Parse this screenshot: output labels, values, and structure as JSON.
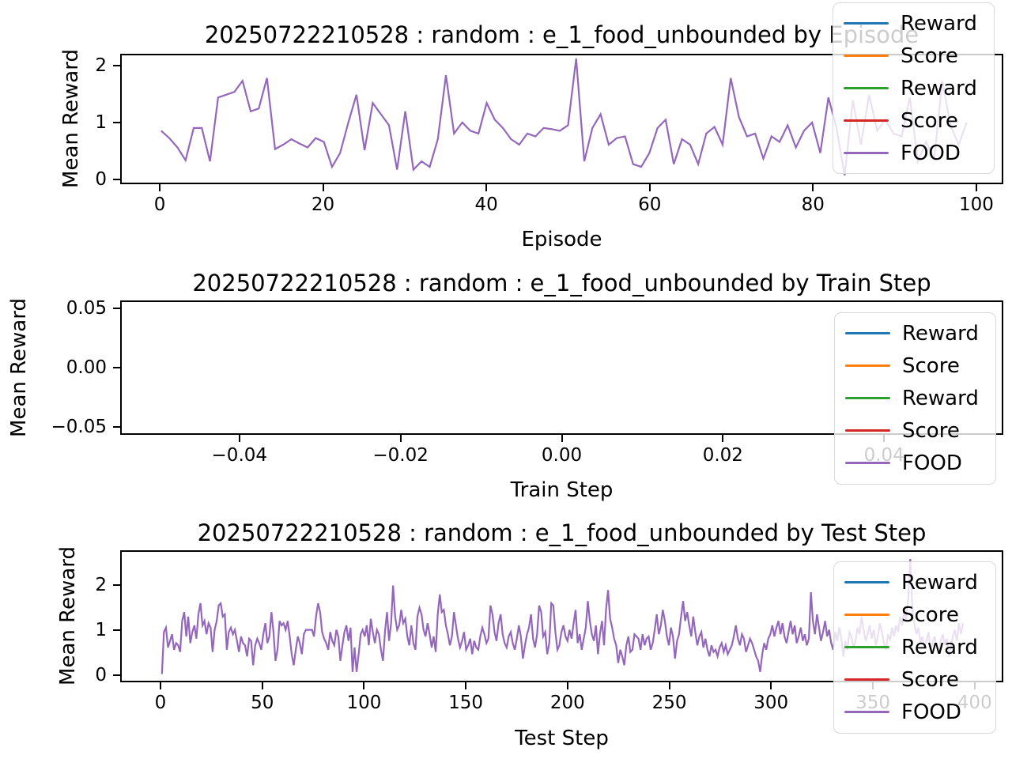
{
  "figure_background": "#ffffff",
  "line_color": "#9467bd",
  "legend_entries": [
    {
      "label": "Reward",
      "color": "#1f77b4"
    },
    {
      "label": "Score",
      "color": "#ff7f0e"
    },
    {
      "label": "Reward",
      "color": "#2ca02c"
    },
    {
      "label": "Score",
      "color": "#d62728"
    },
    {
      "label": "FOOD",
      "color": "#9467bd"
    }
  ],
  "chart_data": [
    {
      "type": "line",
      "title": "20250722210528 : random : e_1_food_unbounded by Episode",
      "xlabel": "Episode",
      "ylabel": "Mean Reward",
      "xlim": [
        -4.84,
        103.3
      ],
      "ylim": [
        -0.083,
        2.208
      ],
      "grid": false,
      "legend_position": "upper right, overlapping plot and title",
      "xticks": [
        {
          "v": 0,
          "label": "0"
        },
        {
          "v": 20,
          "label": "20"
        },
        {
          "v": 40,
          "label": "40"
        },
        {
          "v": 60,
          "label": "60"
        },
        {
          "v": 80,
          "label": "80"
        },
        {
          "v": 100,
          "label": "100"
        }
      ],
      "yticks": [
        {
          "v": 0,
          "label": "0"
        },
        {
          "v": 1,
          "label": "1"
        },
        {
          "v": 2,
          "label": "2"
        }
      ],
      "series": [
        {
          "name": "FOOD",
          "color": "#9467bd",
          "x_start": 0,
          "x_step": 1,
          "values": [
            0.85,
            0.72,
            0.55,
            0.32,
            0.9,
            0.9,
            0.3,
            1.45,
            1.5,
            1.55,
            1.75,
            1.2,
            1.25,
            1.8,
            0.52,
            0.6,
            0.7,
            0.62,
            0.55,
            0.72,
            0.65,
            0.2,
            0.45,
            1.0,
            1.5,
            0.5,
            1.35,
            1.15,
            0.95,
            0.15,
            1.2,
            0.15,
            0.3,
            0.2,
            0.7,
            1.85,
            0.8,
            1.0,
            0.85,
            0.8,
            1.35,
            1.05,
            0.9,
            0.7,
            0.6,
            0.8,
            0.75,
            0.9,
            0.88,
            0.85,
            0.95,
            2.15,
            0.3,
            0.9,
            1.15,
            0.6,
            0.72,
            0.75,
            0.25,
            0.2,
            0.45,
            0.9,
            1.05,
            0.25,
            0.7,
            0.6,
            0.25,
            0.8,
            0.92,
            0.6,
            1.8,
            1.1,
            0.75,
            0.8,
            0.35,
            0.75,
            0.65,
            0.95,
            0.55,
            0.85,
            1.0,
            0.45,
            1.45,
            0.9,
            0.05,
            1.4,
            0.6,
            1.5,
            0.85,
            1.05,
            0.8,
            0.75,
            1.45,
            0.3,
            0.65,
            0.35,
            1.75,
            0.95,
            0.6,
            1.0
          ]
        }
      ]
    },
    {
      "type": "line",
      "title": "20250722210528 : random : e_1_food_unbounded by Train Step",
      "xlabel": "Train Step",
      "ylabel": "Mean Reward",
      "xlim": [
        -0.0548,
        0.0548
      ],
      "ylim": [
        -0.0567,
        0.0567
      ],
      "grid": false,
      "legend_position": "right, overlapping plot edge and 0.04 tick",
      "xticks": [
        {
          "v": -0.04,
          "label": "−0.04"
        },
        {
          "v": -0.02,
          "label": "−0.02"
        },
        {
          "v": 0,
          "label": "0.00"
        },
        {
          "v": 0.02,
          "label": "0.02"
        },
        {
          "v": 0.04,
          "label": "0.04"
        }
      ],
      "yticks": [
        {
          "v": 0.05,
          "label": "0.05"
        },
        {
          "v": 0,
          "label": "0.00"
        },
        {
          "v": -0.05,
          "label": "−0.05"
        }
      ],
      "series": []
    },
    {
      "type": "line",
      "title": "20250722210528 : random : e_1_food_unbounded by Test Step",
      "xlabel": "Test Step",
      "ylabel": "Mean Reward",
      "xlim": [
        -19.8,
        414.1
      ],
      "ylim": [
        -0.15,
        2.76
      ],
      "grid": false,
      "legend_position": "upper right, overlapping plot and 350/400 ticks",
      "xticks": [
        {
          "v": 0,
          "label": "0"
        },
        {
          "v": 50,
          "label": "50"
        },
        {
          "v": 100,
          "label": "100"
        },
        {
          "v": 150,
          "label": "150"
        },
        {
          "v": 200,
          "label": "200"
        },
        {
          "v": 250,
          "label": "250"
        },
        {
          "v": 300,
          "label": "300"
        },
        {
          "v": 350,
          "label": "350"
        },
        {
          "v": 400,
          "label": "400"
        }
      ],
      "yticks": [
        {
          "v": 0,
          "label": "0"
        },
        {
          "v": 1,
          "label": "1"
        },
        {
          "v": 2,
          "label": "2"
        }
      ],
      "series": [
        {
          "name": "FOOD",
          "color": "#9467bd",
          "x_start": 0,
          "x_step": 1,
          "values": [
            0,
            0.95,
            1.05,
            0.6,
            0.75,
            0.9,
            0.55,
            0.7,
            0.65,
            0.5,
            1.2,
            1.4,
            0.85,
            1.3,
            0.7,
            0.95,
            1.1,
            0.8,
            1.35,
            1.6,
            1.1,
            1.2,
            0.9,
            1.15,
            1.05,
            0.5,
            1.0,
            1.2,
            1.55,
            1.6,
            1.3,
            1.35,
            0.55,
            0.95,
            1.05,
            0.9,
            1.0,
            0.75,
            0.5,
            0.85,
            0.7,
            0.65,
            0.4,
            0.8,
            0.75,
            0.2,
            0.65,
            0.8,
            0.7,
            0.55,
            0.9,
            1.15,
            0.7,
            0.85,
            1.4,
            0.95,
            0.3,
            0.55,
            1.2,
            1.1,
            1.15,
            1.0,
            1.2,
            0.85,
            0.45,
            0.2,
            0.55,
            0.85,
            0.7,
            0.45,
            0.9,
            1.0,
            1.0,
            1.0,
            1.0,
            0.85,
            1.3,
            1.6,
            1.4,
            0.95,
            0.8,
            0.7,
            0.55,
            0.95,
            0.75,
            0.65,
            1.0,
            0.85,
            0.3,
            0.65,
            0.95,
            1.1,
            0.75,
            1.05,
            0.05,
            0.6,
            0.05,
            0.45,
            0.9,
            1.0,
            0.85,
            1.1,
            0.65,
            1.25,
            0.95,
            0.7,
            1.0,
            0.9,
            0.55,
            0.3,
            0.95,
            1.4,
            0.75,
            1.15,
            2.0,
            1.3,
            1.0,
            1.1,
            1.45,
            1.15,
            1.25,
            0.85,
            0.65,
            1.1,
            0.7,
            0.55,
            1.3,
            1.5,
            1.35,
            1.0,
            0.85,
            1.15,
            0.9,
            0.6,
            0.85,
            0.5,
            1.35,
            1.8,
            1.4,
            1.45,
            1.1,
            0.9,
            0.65,
            0.85,
            1.4,
            1.1,
            0.8,
            0.6,
            0.75,
            0.95,
            0.55,
            0.65,
            0.8,
            0.45,
            0.75,
            0.6,
            0.55,
            0.85,
            1.05,
            0.9,
            0.7,
            0.8,
            1.55,
            1.35,
            0.95,
            0.75,
            1.15,
            1.35,
            0.9,
            0.7,
            0.6,
            0.85,
            0.95,
            0.7,
            0.55,
            0.8,
            1.1,
            0.85,
            0.35,
            0.65,
            0.9,
            1.05,
            1.35,
            0.8,
            0.6,
            0.9,
            1.55,
            1.4,
            0.85,
            0.95,
            0.45,
            0.7,
            1.6,
            1.55,
            0.95,
            0.55,
            0.65,
            0.95,
            1.1,
            0.85,
            0.75,
            1.0,
            0.8,
            1.15,
            1.45,
            0.7,
            0.9,
            0.55,
            0.8,
            1.05,
            1.65,
            1.2,
            0.9,
            0.75,
            1.1,
            0.45,
            0.9,
            1.2,
            0.65,
            1.45,
            1.9,
            1.25,
            1.05,
            0.8,
            0.65,
            0.25,
            0.55,
            0.4,
            0.2,
            0.65,
            0.85,
            0.5,
            0.55,
            0.9,
            0.85,
            0.8,
            0.55,
            0.9,
            0.65,
            0.8,
            0.85,
            0.55,
            0.7,
            1.0,
            1.35,
            0.9,
            1.1,
            1.45,
            1.2,
            0.85,
            0.65,
            1.05,
            0.85,
            0.35,
            0.75,
            0.9,
            1.3,
            1.65,
            1.2,
            1.4,
            1.1,
            0.85,
            1.3,
            0.95,
            0.65,
            0.85,
            0.95,
            0.6,
            0.8,
            0.55,
            0.4,
            0.65,
            0.5,
            0.55,
            0.4,
            0.6,
            0.7,
            0.5,
            0.65,
            0.45,
            0.55,
            0.65,
            0.85,
            1.1,
            0.8,
            0.65,
            0.9,
            0.8,
            0.5,
            0.65,
            0.8,
            0.7,
            0.55,
            0.4,
            0.3,
            0.05,
            0.45,
            0.7,
            0.55,
            0.8,
            0.9,
            1.1,
            0.85,
            1.05,
            1.2,
            0.9,
            1.15,
            0.85,
            0.7,
            0.95,
            1.2,
            0.9,
            1.1,
            0.7,
            0.85,
            1.05,
            0.75,
            0.9,
            0.65,
            0.8,
            1.85,
            1.2,
            0.9,
            1.35,
            1.05,
            0.75,
            0.95,
            1.2,
            0.85,
            1.0,
            0.7,
            0.55,
            0.95,
            0.75,
            1.05,
            0.8,
            0.4,
            0.75,
            0.55,
            0.95,
            0.85,
            0.6,
            0.75,
            1.05,
            0.9,
            1.3,
            1.0,
            0.75,
            0.9,
            1.1,
            0.8,
            1.0,
            0.65,
            0.85,
            1.15,
            0.95,
            0.7,
            0.55,
            0.9,
            0.75,
            1.05,
            0.85,
            1.1,
            0.95,
            1.3,
            1.1,
            1.45,
            1.2,
            1.7,
            2.6,
            1.5,
            1.15,
            0.9,
            1.05,
            0.7,
            0.85,
            0.6,
            0.75,
            0.95,
            0.55,
            0.7,
            0.85,
            0.6,
            0.5,
            0.75,
            0.9,
            0.65,
            0.8,
            0.4,
            0.6,
            0.85,
            1.0,
            0.75,
            1.15,
            0.9,
            1.15
          ]
        }
      ]
    }
  ]
}
